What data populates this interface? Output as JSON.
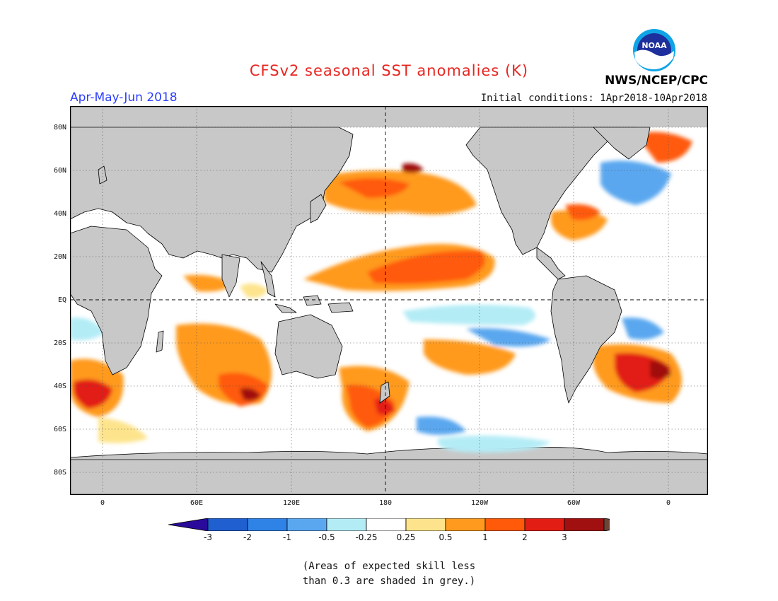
{
  "title": "CFSv2 seasonal SST anomalies (K)",
  "season": "Apr-May-Jun 2018",
  "initial_conditions": "Initial conditions: 1Apr2018-10Apr2018",
  "agency": "NWS/NCEP/CPC",
  "logo_text": "NOAA",
  "lat_labels": [
    "80N",
    "60N",
    "40N",
    "20N",
    "EQ",
    "20S",
    "40S",
    "60S",
    "80S"
  ],
  "lon_labels": [
    "0",
    "60E",
    "120E",
    "180",
    "120W",
    "60W",
    "0"
  ],
  "colorbar": {
    "labels": [
      "-3",
      "-2",
      "-1",
      "-0.5",
      "-0.25",
      "0.25",
      "0.5",
      "1",
      "2",
      "3"
    ],
    "colors": [
      "#2a0a9a",
      "#1f5fd0",
      "#2f82e6",
      "#5aa7ef",
      "#b4ecf6",
      "#ffffff",
      "#fde48c",
      "#ff9a1e",
      "#ff5a0a",
      "#e21d14",
      "#a01010",
      "#6e4436"
    ]
  },
  "note_line1": "(Areas of expected skill less",
  "note_line2": "than 0.3 are shaded in grey.)",
  "colors": {
    "land": "#c8c8c8",
    "grey_skill": "#b5b5b5",
    "title_red": "#e8251f",
    "season_blue": "#2c3dff"
  }
}
